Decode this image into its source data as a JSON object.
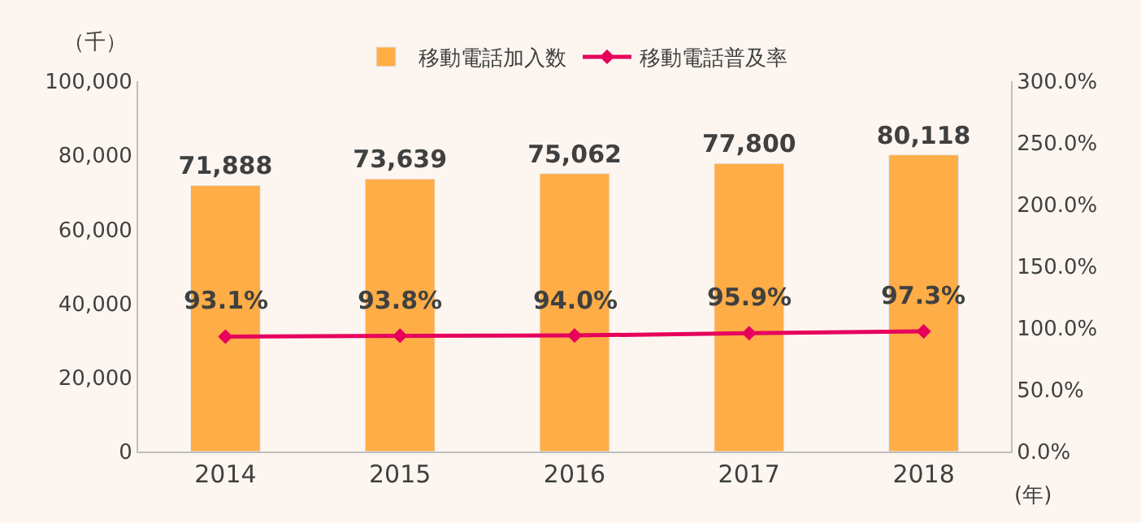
{
  "chart_data": {
    "type": "bar",
    "categories": [
      "2014",
      "2015",
      "2016",
      "2017",
      "2018"
    ],
    "ylabel": "（千）",
    "xlabel": "(年)",
    "ylim": [
      0,
      100000
    ],
    "yticks": [
      {
        "value": 0,
        "label": "0"
      },
      {
        "value": 20000,
        "label": "20,000"
      },
      {
        "value": 40000,
        "label": "40,000"
      },
      {
        "value": 60000,
        "label": "60,000"
      },
      {
        "value": 80000,
        "label": "80,000"
      },
      {
        "value": 100000,
        "label": "100,000"
      }
    ],
    "y2lim": [
      0,
      300
    ],
    "y2ticks": [
      {
        "value": 0,
        "label": "0.0%"
      },
      {
        "value": 50,
        "label": "50.0%"
      },
      {
        "value": 100,
        "label": "100.0%"
      },
      {
        "value": 150,
        "label": "150.0%"
      },
      {
        "value": 200,
        "label": "200.0%"
      },
      {
        "value": 250,
        "label": "250.0%"
      },
      {
        "value": 300,
        "label": "300.0%"
      }
    ],
    "series": [
      {
        "name": "移動電話加入数",
        "color": "#ffad47",
        "values": [
          71888,
          73639,
          75062,
          77800,
          80118
        ],
        "value_labels": [
          "71,888",
          "73,639",
          "75,062",
          "77,800",
          "80,118"
        ]
      },
      {
        "name": "移動電話普及率",
        "type": "line",
        "axis": "y2",
        "color": "#e6005c",
        "marker": "diamond",
        "values": [
          93.1,
          93.8,
          94.0,
          95.9,
          97.3
        ],
        "value_labels": [
          "93.1%",
          "93.8%",
          "94.0%",
          "95.9%",
          "97.3%"
        ]
      }
    ],
    "legend": "top",
    "grid": false
  }
}
